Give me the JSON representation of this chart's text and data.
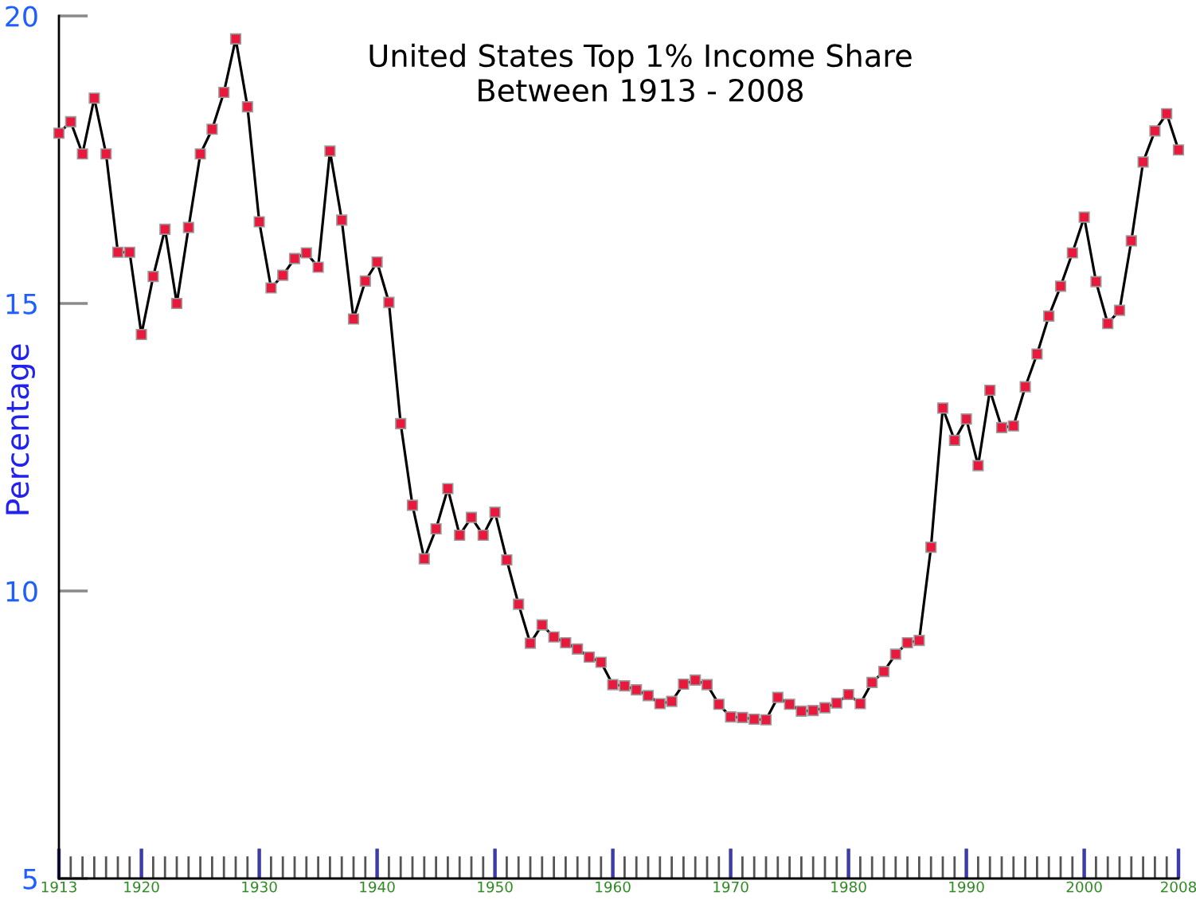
{
  "chart_data": {
    "type": "line",
    "title": "United States Top 1% Income Share\nBetween 1913 - 2008",
    "ylabel": "Percentage",
    "x": [
      1913,
      1914,
      1915,
      1916,
      1917,
      1918,
      1919,
      1920,
      1921,
      1922,
      1923,
      1924,
      1925,
      1926,
      1927,
      1928,
      1929,
      1930,
      1931,
      1932,
      1933,
      1934,
      1935,
      1936,
      1937,
      1938,
      1939,
      1940,
      1941,
      1942,
      1943,
      1944,
      1945,
      1946,
      1947,
      1948,
      1949,
      1950,
      1951,
      1952,
      1953,
      1954,
      1955,
      1956,
      1957,
      1958,
      1959,
      1960,
      1961,
      1962,
      1963,
      1964,
      1965,
      1966,
      1967,
      1968,
      1969,
      1970,
      1971,
      1972,
      1973,
      1974,
      1975,
      1976,
      1977,
      1978,
      1979,
      1980,
      1981,
      1982,
      1983,
      1984,
      1985,
      1986,
      1987,
      1988,
      1989,
      1990,
      1991,
      1992,
      1993,
      1994,
      1995,
      1996,
      1997,
      1998,
      1999,
      2000,
      2001,
      2002,
      2003,
      2004,
      2005,
      2006,
      2007,
      2008
    ],
    "series": [
      {
        "color": "#e8193c",
        "values": [
          17.96,
          18.16,
          17.6,
          18.57,
          17.6,
          15.89,
          15.89,
          14.46,
          15.47,
          16.29,
          15.0,
          16.32,
          17.6,
          18.03,
          18.67,
          19.6,
          18.42,
          16.42,
          15.27,
          15.49,
          15.78,
          15.88,
          15.63,
          17.65,
          16.45,
          14.73,
          15.39,
          15.72,
          15.02,
          12.91,
          11.49,
          10.56,
          11.08,
          11.78,
          10.97,
          11.28,
          10.97,
          11.37,
          10.54,
          9.77,
          9.09,
          9.41,
          9.2,
          9.1,
          8.99,
          8.85,
          8.76,
          8.37,
          8.35,
          8.28,
          8.18,
          8.04,
          8.08,
          8.38,
          8.45,
          8.37,
          8.03,
          7.81,
          7.8,
          7.77,
          7.76,
          8.15,
          8.03,
          7.91,
          7.92,
          7.97,
          8.05,
          8.2,
          8.04,
          8.41,
          8.6,
          8.9,
          9.1,
          9.14,
          10.76,
          13.18,
          12.62,
          12.99,
          12.18,
          13.49,
          12.84,
          12.87,
          13.55,
          14.12,
          14.78,
          15.3,
          15.88,
          16.5,
          15.38,
          14.65,
          14.88,
          16.09,
          17.46,
          18.0,
          18.3,
          17.67
        ]
      }
    ],
    "xlim": [
      1913,
      2008
    ],
    "ylim": [
      5,
      20
    ],
    "xticks": [
      1913,
      {
        "value": 1914,
        "label": null
      },
      {
        "value": 1915,
        "label": null
      },
      {
        "value": 1916,
        "label": null
      },
      {
        "value": 1917,
        "label": null
      },
      {
        "value": 1918,
        "label": null
      },
      {
        "value": 1919,
        "label": null
      },
      1920,
      {
        "value": 1921,
        "label": null
      },
      {
        "value": 1922,
        "label": null
      },
      {
        "value": 1923,
        "label": null
      },
      {
        "value": 1924,
        "label": null
      },
      {
        "value": 1925,
        "label": null
      },
      {
        "value": 1926,
        "label": null
      },
      {
        "value": 1927,
        "label": null
      },
      {
        "value": 1928,
        "label": null
      },
      {
        "value": 1929,
        "label": null
      },
      1930,
      {
        "value": 1931,
        "label": null
      },
      {
        "value": 1932,
        "label": null
      },
      {
        "value": 1933,
        "label": null
      },
      {
        "value": 1934,
        "label": null
      },
      {
        "value": 1935,
        "label": null
      },
      {
        "value": 1936,
        "label": null
      },
      {
        "value": 1937,
        "label": null
      },
      {
        "value": 1938,
        "label": null
      },
      {
        "value": 1939,
        "label": null
      },
      1940,
      {
        "value": 1941,
        "label": null
      },
      {
        "value": 1942,
        "label": null
      },
      {
        "value": 1943,
        "label": null
      },
      {
        "value": 1944,
        "label": null
      },
      {
        "value": 1945,
        "label": null
      },
      {
        "value": 1946,
        "label": null
      },
      {
        "value": 1947,
        "label": null
      },
      {
        "value": 1948,
        "label": null
      },
      {
        "value": 1949,
        "label": null
      },
      1950,
      {
        "value": 1951,
        "label": null
      },
      {
        "value": 1952,
        "label": null
      },
      {
        "value": 1953,
        "label": null
      },
      {
        "value": 1954,
        "label": null
      },
      {
        "value": 1955,
        "label": null
      },
      {
        "value": 1956,
        "label": null
      },
      {
        "value": 1957,
        "label": null
      },
      {
        "value": 1958,
        "label": null
      },
      {
        "value": 1959,
        "label": null
      },
      1960,
      {
        "value": 1961,
        "label": null
      },
      {
        "value": 1962,
        "label": null
      },
      {
        "value": 1963,
        "label": null
      },
      {
        "value": 1964,
        "label": null
      },
      {
        "value": 1965,
        "label": null
      },
      {
        "value": 1966,
        "label": null
      },
      {
        "value": 1967,
        "label": null
      },
      {
        "value": 1968,
        "label": null
      },
      {
        "value": 1969,
        "label": null
      },
      1970,
      {
        "value": 1971,
        "label": null
      },
      {
        "value": 1972,
        "label": null
      },
      {
        "value": 1973,
        "label": null
      },
      {
        "value": 1974,
        "label": null
      },
      {
        "value": 1975,
        "label": null
      },
      {
        "value": 1976,
        "label": null
      },
      {
        "value": 1977,
        "label": null
      },
      {
        "value": 1978,
        "label": null
      },
      {
        "value": 1979,
        "label": null
      },
      1980,
      {
        "value": 1981,
        "label": null
      },
      {
        "value": 1982,
        "label": null
      },
      {
        "value": 1983,
        "label": null
      },
      {
        "value": 1984,
        "label": null
      },
      {
        "value": 1985,
        "label": null
      },
      {
        "value": 1986,
        "label": null
      },
      {
        "value": 1987,
        "label": null
      },
      {
        "value": 1988,
        "label": null
      },
      {
        "value": 1989,
        "label": null
      },
      1990,
      {
        "value": 1991,
        "label": null
      },
      {
        "value": 1992,
        "label": null
      },
      {
        "value": 1993,
        "label": null
      },
      {
        "value": 1994,
        "label": null
      },
      {
        "value": 1995,
        "label": null
      },
      {
        "value": 1996,
        "label": null
      },
      {
        "value": 1997,
        "label": null
      },
      {
        "value": 1998,
        "label": null
      },
      {
        "value": 1999,
        "label": null
      },
      2000,
      {
        "value": 2001,
        "label": null
      },
      {
        "value": 2002,
        "label": null
      },
      {
        "value": 2003,
        "label": null
      },
      {
        "value": 2004,
        "label": null
      },
      {
        "value": 2005,
        "label": null
      },
      {
        "value": 2006,
        "label": null
      },
      {
        "value": 2007,
        "label": null
      },
      2008
    ],
    "yticks": [
      5,
      10,
      15,
      20
    ],
    "grid": false,
    "marker": "square",
    "line_style": "solid"
  }
}
